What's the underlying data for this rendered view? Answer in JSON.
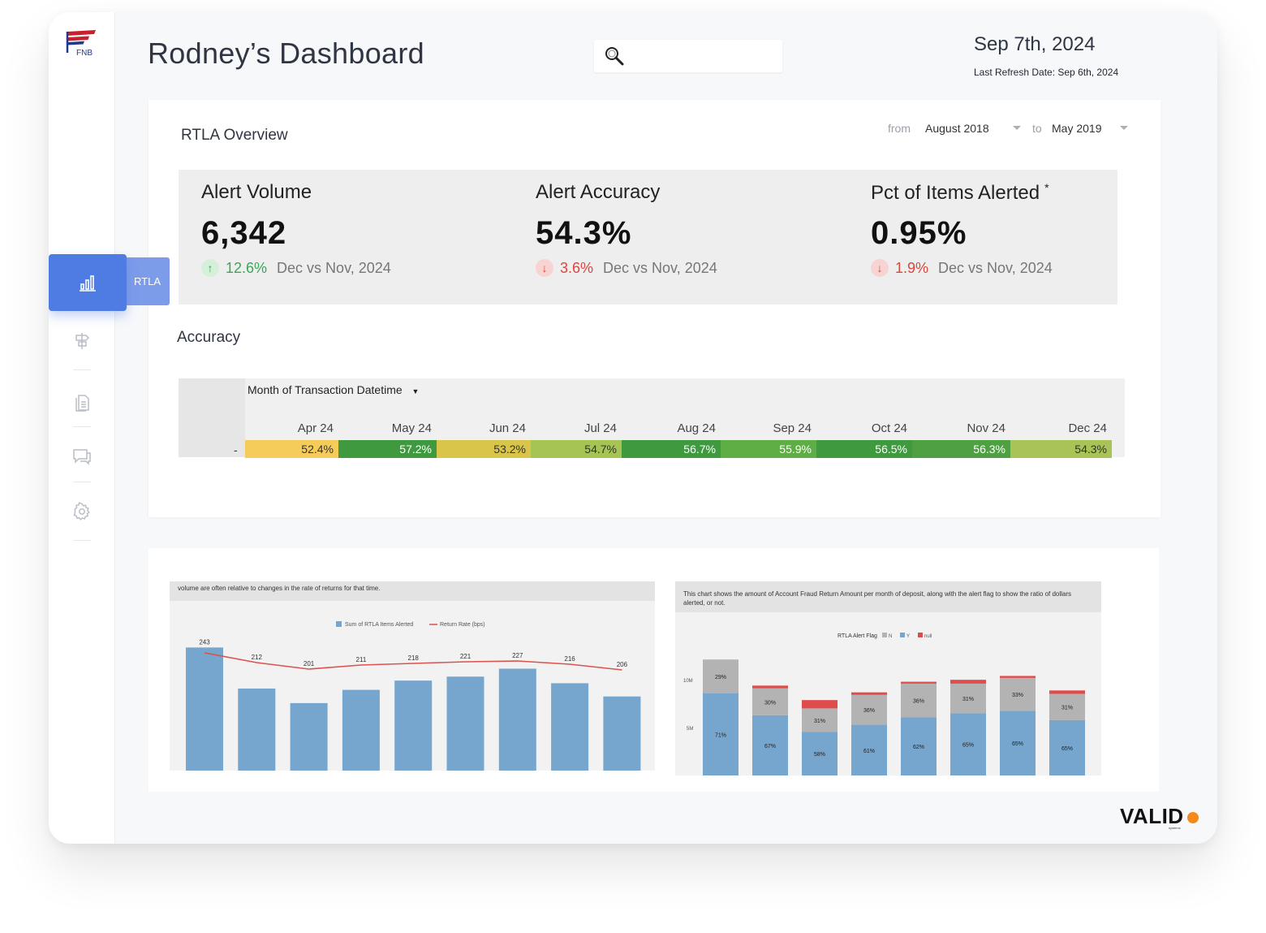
{
  "header": {
    "title": "Rodney’s Dashboard",
    "date": "Sep 7th, 2024",
    "refresh": "Last Refresh Date: Sep 6th, 2024"
  },
  "brand": {
    "logo_text": "FNB",
    "footer_logo": "VALID",
    "footer_sub": "systems"
  },
  "sidebar": {
    "active_tooltip": "RTLA",
    "accent": "#4f7ce3"
  },
  "overview": {
    "title": "RTLA Overview",
    "from_label": "from",
    "from_value": "August 2018",
    "to_label": "to",
    "to_value": "May 2019"
  },
  "kpis": [
    {
      "label": "Alert Volume",
      "value": "6,342",
      "change": "12.6%",
      "direction": "up",
      "period": "Dec vs Nov, 2024"
    },
    {
      "label": "Alert Accuracy",
      "value": "54.3%",
      "change": "3.6%",
      "direction": "down",
      "period": "Dec vs Nov, 2024"
    },
    {
      "label": "Pct of Items Alerted",
      "value": "0.95%",
      "change": "1.9%",
      "direction": "down",
      "period": "Dec vs Nov, 2024",
      "asterisk": "*"
    }
  ],
  "accuracy": {
    "title": "Accuracy",
    "header": "Month of Transaction Datetime",
    "row_label": "-",
    "months": [
      "Apr 24",
      "May 24",
      "Jun 24",
      "Jul 24",
      "Aug 24",
      "Sep 24",
      "Oct 24",
      "Nov 24",
      "Dec 24"
    ],
    "values": [
      "52.4%",
      "57.2%",
      "53.2%",
      "54.7%",
      "56.7%",
      "55.9%",
      "56.5%",
      "56.3%",
      "54.3%"
    ],
    "colors": [
      "#f5cc5a",
      "#3f9a3f",
      "#d9c54a",
      "#a6c454",
      "#3f9a3f",
      "#5fae45",
      "#3f9a3f",
      "#4fa043",
      "#a8c356"
    ]
  },
  "chart_data": [
    {
      "type": "bar",
      "caption": "volume are often relative to changes in the rate of returns for that time.",
      "series": [
        {
          "name": "Sum of RTLA Items Alerted",
          "values": [
            243,
            212,
            201,
            211,
            218,
            221,
            227,
            216,
            206
          ],
          "color": "#76a5cd"
        },
        {
          "name": "Return Rate (bps)",
          "type": "line",
          "color": "#d9534f"
        }
      ],
      "data_labels": [
        243,
        212,
        201,
        211,
        218,
        221,
        227,
        216,
        206
      ]
    },
    {
      "type": "bar",
      "stacked": true,
      "caption": "This chart shows the amount of Account Fraud Return Amount per month of deposit, along with the alert flag to show the ratio of dollars alerted, or not.",
      "legend_title": "RTLA Alert Flag",
      "series": [
        {
          "name": "N",
          "color": "#b3b3b3"
        },
        {
          "name": "Y",
          "color": "#76a5cd"
        },
        {
          "name": "null",
          "color": "#e04b4b"
        }
      ],
      "y_ticks": [
        "10M",
        "5M"
      ],
      "bars": [
        {
          "y_pct": "71%",
          "n_pct": "29%"
        },
        {
          "y_pct": "67%",
          "n_pct": "30%"
        },
        {
          "y_pct": "58%",
          "n_pct": "31%"
        },
        {
          "y_pct": "61%",
          "n_pct": "36%"
        },
        {
          "y_pct": "62%",
          "n_pct": "36%"
        },
        {
          "y_pct": "65%",
          "n_pct": "31%"
        },
        {
          "y_pct": "65%",
          "n_pct": "33%"
        },
        {
          "y_pct": "65%",
          "n_pct": "31%"
        }
      ]
    }
  ]
}
